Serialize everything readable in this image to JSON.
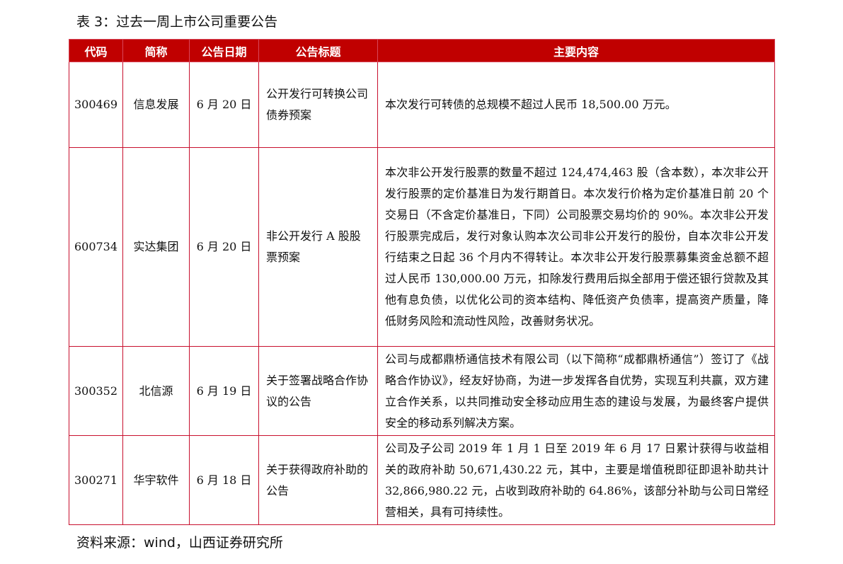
{
  "title": "表 3：过去一周上市公司重要公告",
  "table": {
    "headers": [
      "代码",
      "简称",
      "公告日期",
      "公告标题",
      "主要内容"
    ],
    "rows": [
      {
        "code": "300469",
        "name": "信息发展",
        "date": "6 月 20 日",
        "headline": "公开发行可转换公司债券预案",
        "content": "本次发行可转债的总规模不超过人民币 18,500.00 万元。"
      },
      {
        "code": "600734",
        "name": "实达集团",
        "date": "6 月 20 日",
        "headline": "非公开发行 A 股股票预案",
        "content": "本次非公开发行股票的数量不超过 124,474,463 股（含本数），本次非公开发行股票的定价基准日为发行期首日。本次发行价格为定价基准日前 20 个交易日（不含定价基准日，下同）公司股票交易均价的 90%。本次非公开发行股票完成后，发行对象认购本次公司非公开发行的股份，自本次非公开发行结束之日起 36 个月内不得转让。本次非公开发行股票募集资金总额不超过人民币 130,000.00 万元，扣除发行费用后拟全部用于偿还银行贷款及其他有息负债，以优化公司的资本结构、降低资产负债率，提高资产质量，降低财务风险和流动性风险，改善财务状况。"
      },
      {
        "code": "300352",
        "name": "北信源",
        "date": "6 月 19 日",
        "headline": "关于签署战略合作协议的公告",
        "content": "公司与成都鼎桥通信技术有限公司（以下简称“成都鼎桥通信”）签订了《战略合作协议》，经友好协商，为进一步发挥各自优势，实现互利共赢，双方建立合作关系，以共同推动安全移动应用生态的建设与发展，为最终客户提供安全的移动系列解决方案。"
      },
      {
        "code": "300271",
        "name": "华宇软件",
        "date": "6 月 18 日",
        "headline": "关于获得政府补助的公告",
        "content": "公司及子公司 2019 年 1 月 1 日至 2019 年 6 月 17 日累计获得与收益相关的政府补助 50,671,430.22 元，其中，主要是增值税即征即退补助共计 32,866,980.22 元，占收到政府补助的 64.86%，该部分补助与公司日常经营相关，具有可持续性。"
      }
    ]
  },
  "source": "资料来源：wind，山西证券研究所",
  "colors": {
    "header_bg": "#c00000",
    "border": "#c8102e"
  }
}
